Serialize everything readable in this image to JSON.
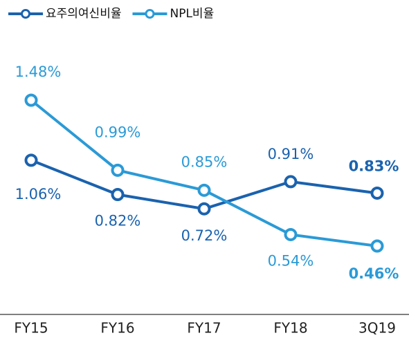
{
  "chart_data": {
    "type": "line",
    "categories": [
      "FY15",
      "FY16",
      "FY17",
      "FY18",
      "3Q19"
    ],
    "series": [
      {
        "name": "요주의여신비율",
        "color": "#1a62ae",
        "values": [
          1.06,
          0.82,
          0.72,
          0.91,
          0.83
        ],
        "value_labels": [
          "1.06%",
          "0.82%",
          "0.72%",
          "0.91%",
          "0.83%"
        ]
      },
      {
        "name": "NPL비율",
        "color": "#2b9ad6",
        "values": [
          1.48,
          0.99,
          0.85,
          0.54,
          0.46
        ],
        "value_labels": [
          "1.48%",
          "0.99%",
          "0.85%",
          "0.54%",
          "0.46%"
        ]
      }
    ],
    "legend": "top-left"
  }
}
